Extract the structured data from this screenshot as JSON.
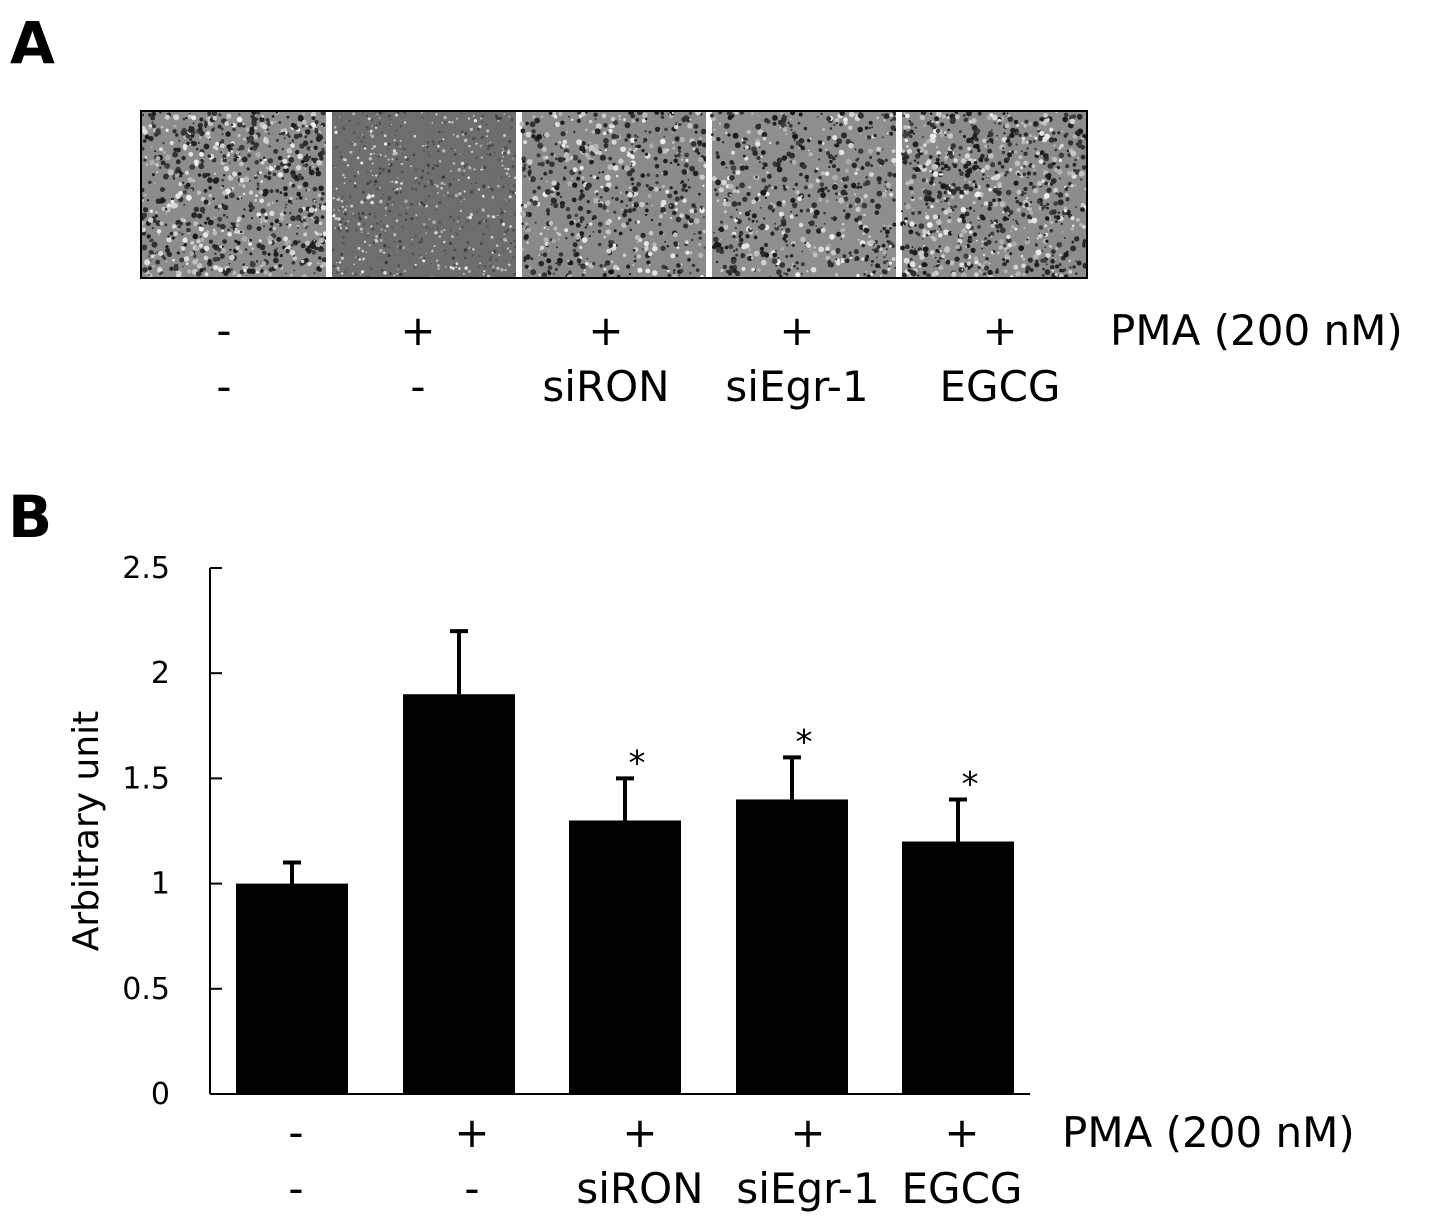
{
  "panel_a": {
    "letter": "A",
    "images": [
      {
        "texture": "dense-dark-speckle",
        "tone": "#8c8c8c"
      },
      {
        "texture": "fine-uniform-grey",
        "tone": "#6e6e6e"
      },
      {
        "texture": "medium-speckle",
        "tone": "#8a8a8a"
      },
      {
        "texture": "medium-speckle",
        "tone": "#8e8e8e"
      },
      {
        "texture": "dense-dark-speckle",
        "tone": "#8c8c8c"
      }
    ],
    "row1_label": "PMA  (200 nM)",
    "row1": [
      "-",
      "+",
      "+",
      "+",
      "+"
    ],
    "row2": [
      "-",
      "-",
      "siRON",
      "siEgr-1",
      "EGCG"
    ]
  },
  "panel_b": {
    "letter": "B",
    "row1_label": "PMA  (200 nM)",
    "row1": [
      "-",
      "+",
      "+",
      "+",
      "+"
    ],
    "row2": [
      "-",
      "-",
      "siRON",
      "siEgr-1",
      "EGCG"
    ]
  },
  "chart_data": {
    "type": "bar",
    "title": "",
    "xlabel": "",
    "ylabel": "Arbitrary unit",
    "ylim": [
      0,
      2.5
    ],
    "yticks": [
      0,
      0.5,
      1,
      1.5,
      2,
      2.5
    ],
    "ytick_labels": [
      "0",
      "0.5",
      "1",
      "1.5",
      "2",
      "2.5"
    ],
    "categories": [
      "-/-",
      "+/-",
      "+/siRON",
      "+/siEgr-1",
      "+/EGCG"
    ],
    "values": [
      1.0,
      1.9,
      1.3,
      1.4,
      1.2
    ],
    "errors": [
      0.1,
      0.3,
      0.2,
      0.2,
      0.2
    ],
    "significance": [
      "",
      "",
      "*",
      "*",
      "*"
    ],
    "bar_color": "#000000",
    "grid": false,
    "legend": "none"
  }
}
